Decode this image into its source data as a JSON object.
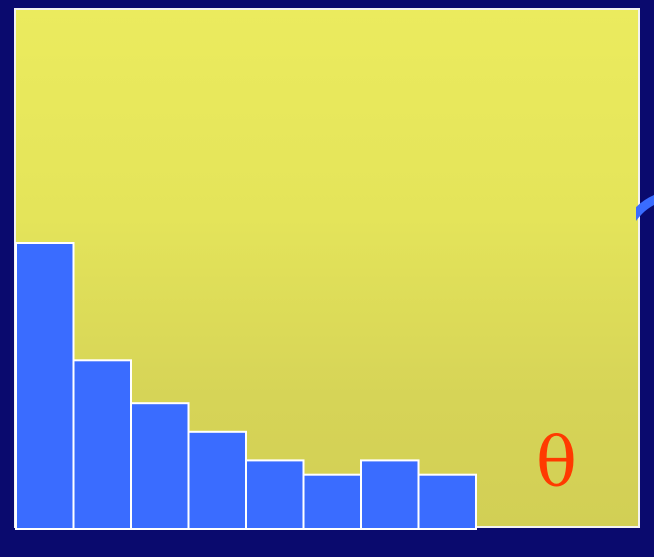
{
  "colors": {
    "background": "#0a0a6e",
    "panel_top": "#ebeb5e",
    "panel_bottom": "#d2cf55",
    "bar_fill": "#3a6cff",
    "bar_stroke": "#ffffff",
    "symbol": "#ff3a00"
  },
  "chart_data": {
    "type": "bar",
    "categories": [
      "",
      "",
      "",
      "",
      "",
      "",
      "",
      ""
    ],
    "values": [
      100,
      59,
      44,
      34,
      24,
      19,
      24,
      19
    ],
    "title": "",
    "xlabel": "θ",
    "ylabel": "",
    "ylim": [
      0,
      100
    ],
    "grid": false
  }
}
